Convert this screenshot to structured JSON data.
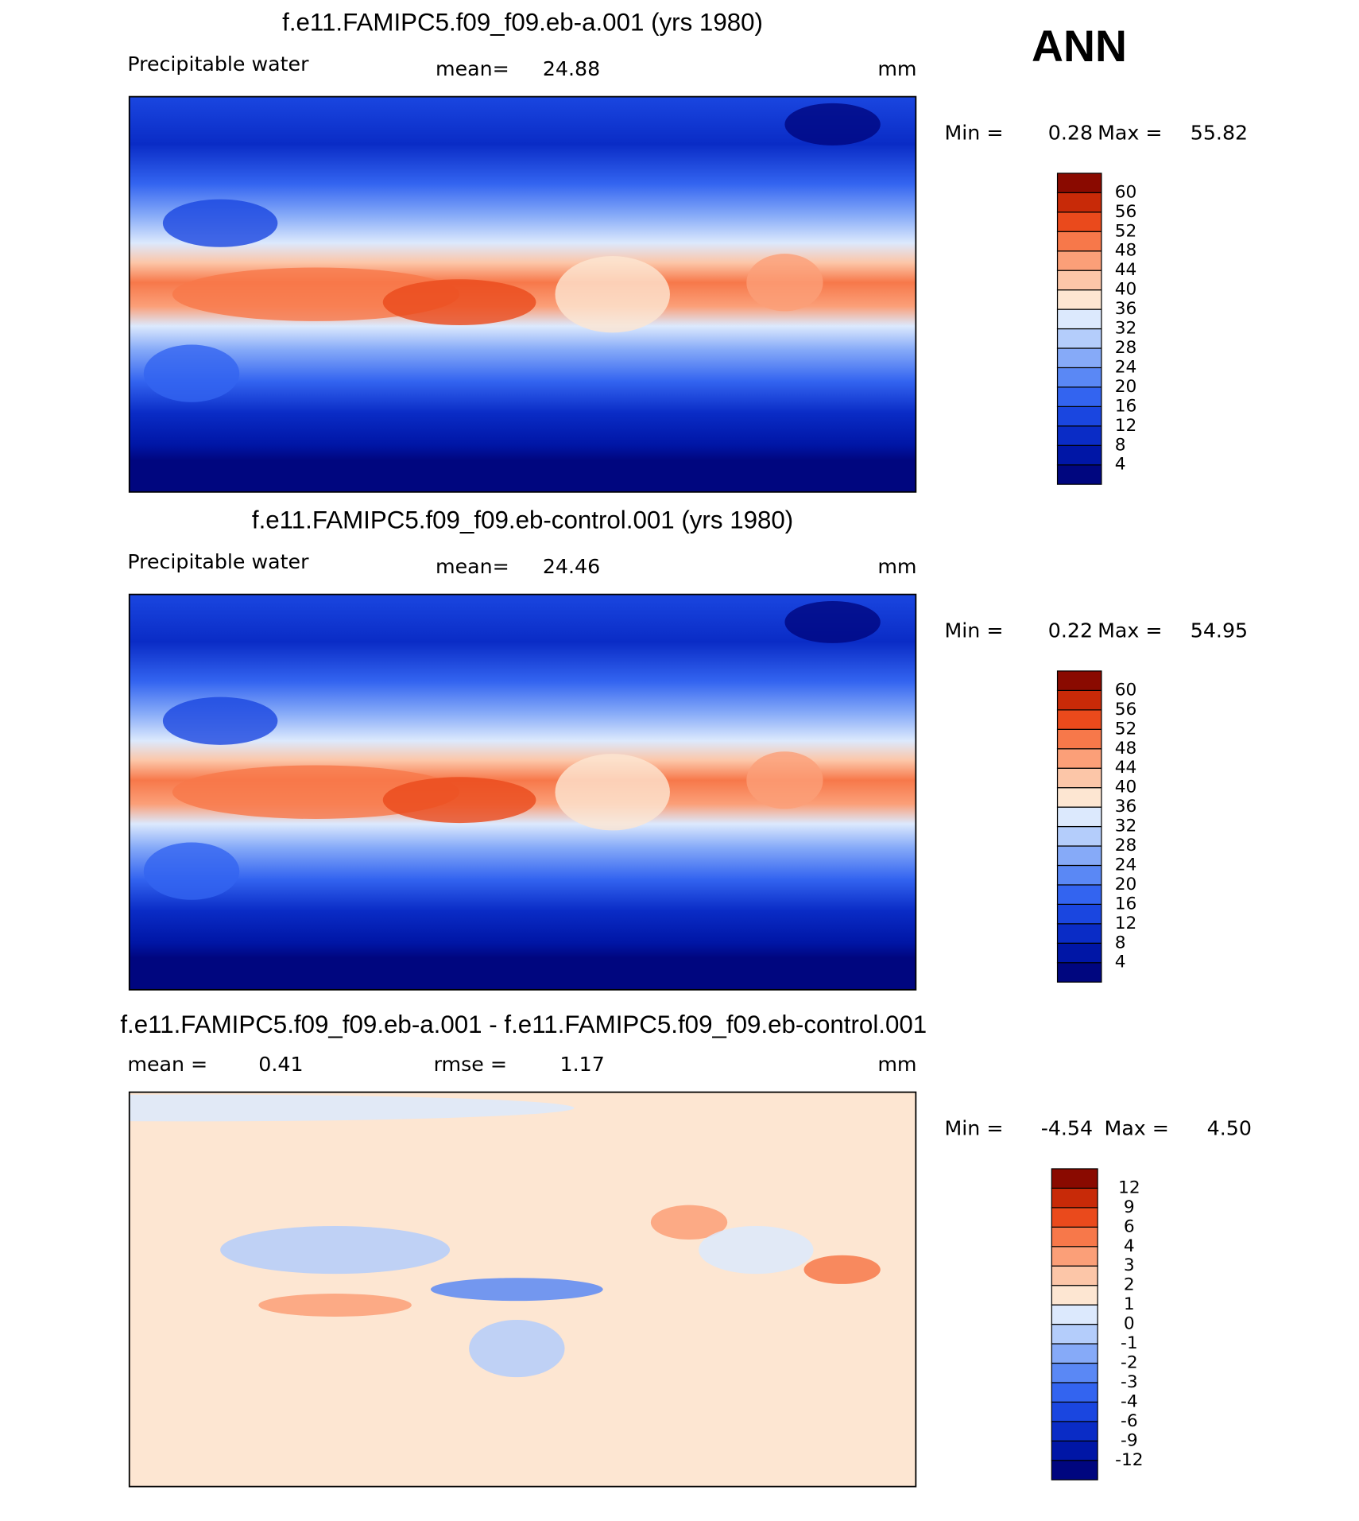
{
  "header": {
    "season": "ANN"
  },
  "colorbar_colors": [
    "#00067f",
    "#0016a6",
    "#0a2cc6",
    "#1a46e0",
    "#3364f0",
    "#5a88f5",
    "#86aaf8",
    "#b4cdfb",
    "#dce9fd",
    "#fde6d2",
    "#fcc6a8",
    "#fb9f78",
    "#f7784a",
    "#ea4a1c",
    "#c82a08",
    "#8a0a00"
  ],
  "panels": [
    {
      "title": "f.e11.FAMIPC5.f09_f09.eb-a.001 (yrs 1980)",
      "variable": "Precipitable water",
      "mean_label": "mean=",
      "mean": 24.88,
      "units": "mm",
      "min_label": "Min =",
      "min": 0.28,
      "max_label": "Max =",
      "max": 55.82,
      "colorbar": {
        "levels": [
          4,
          8,
          12,
          16,
          20,
          24,
          28,
          32,
          36,
          40,
          44,
          48,
          52,
          56,
          60
        ]
      }
    },
    {
      "title": "f.e11.FAMIPC5.f09_f09.eb-control.001 (yrs 1980)",
      "variable": "Precipitable water",
      "mean_label": "mean=",
      "mean": 24.46,
      "units": "mm",
      "min_label": "Min =",
      "min": 0.22,
      "max_label": "Max =",
      "max": 54.95,
      "colorbar": {
        "levels": [
          4,
          8,
          12,
          16,
          20,
          24,
          28,
          32,
          36,
          40,
          44,
          48,
          52,
          56,
          60
        ]
      }
    },
    {
      "title": "f.e11.FAMIPC5.f09_f09.eb-a.001 - f.e11.FAMIPC5.f09_f09.eb-control.001",
      "mean_label": "mean =",
      "mean": 0.41,
      "rmse_label": "rmse =",
      "rmse": 1.17,
      "units": "mm",
      "min_label": "Min =",
      "min": -4.54,
      "max_label": "Max =",
      "max": {
        "value": 4.5,
        "label": "4.50"
      },
      "colorbar": {
        "levels": [
          -12,
          -9,
          -6,
          -4,
          -3,
          -2,
          -1,
          0,
          1,
          2,
          3,
          4,
          6,
          9,
          12
        ]
      }
    }
  ]
}
